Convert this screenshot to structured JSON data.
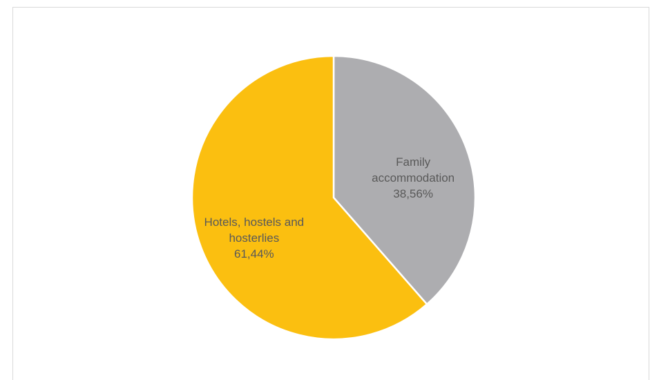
{
  "chart_data": {
    "type": "pie",
    "categories": [
      "Family accommodation",
      "Hotels, hostels and hosterlies"
    ],
    "values": [
      38.56,
      61.44
    ],
    "value_labels": [
      "38,56%",
      "61,44%"
    ],
    "colors": [
      "#adadb0",
      "#fbbf10"
    ]
  }
}
